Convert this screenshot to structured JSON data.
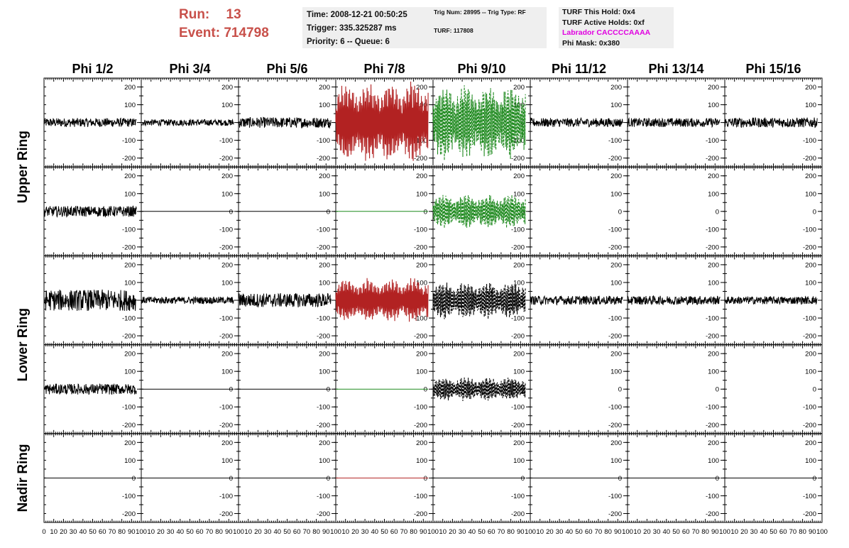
{
  "run_info": {
    "run_label": "Run:",
    "run_value": "13",
    "event_label": "Event:",
    "event_value": "714798"
  },
  "time_box": {
    "time": "Time: 2008-12-21 00:50:25",
    "trigger": "Trigger: 335.325287 ms",
    "priority": "Priority: 6 -- Queue: 6"
  },
  "trig_box": {
    "trig": "Trig Num: 28995 -- Trig Type: RF",
    "turf": "TURF: 117808"
  },
  "turf_box": {
    "this_hold": "TURF This Hold: 0x4",
    "active_holds": "TURF Active Holds: 0xf",
    "labrador": "Labrador CACCCCAAAA",
    "phi_mask": "Phi Mask: 0x380"
  },
  "colors": {
    "run_text": "#c8504a",
    "info_bg": "#efefef",
    "labrador_text": "#e000e0",
    "trace_black": "#000000",
    "trace_red": "#b22222",
    "trace_green": "#1f8a1f"
  },
  "phi_titles": [
    "Phi 1/2",
    "Phi 3/4",
    "Phi 5/6",
    "Phi 7/8",
    "Phi 9/10",
    "Phi 11/12",
    "Phi 13/14",
    "Phi 15/16"
  ],
  "ring_titles": [
    "Upper Ring",
    "Lower Ring",
    "Nadir Ring"
  ],
  "chart_data": {
    "type": "line",
    "x_ticks": [
      "0",
      "10",
      "20",
      "30",
      "40",
      "50",
      "60",
      "70",
      "80",
      "90",
      "100"
    ],
    "y_ticks": [
      "200",
      "100",
      "0",
      "-100",
      "-200"
    ],
    "xlim": [
      0,
      100
    ],
    "ylim": [
      -250,
      250
    ],
    "rows": [
      {
        "ring": "Upper Ring",
        "panels": [
          {
            "amp": 25,
            "color": "black",
            "style": "solid",
            "kind": "noise"
          },
          {
            "amp": 18,
            "color": "black",
            "style": "solid",
            "kind": "noise"
          },
          {
            "amp": 30,
            "color": "black",
            "style": "solid",
            "kind": "noise"
          },
          {
            "amp": 240,
            "color": "red",
            "style": "solid",
            "kind": "beat"
          },
          {
            "amp": 220,
            "color": "green",
            "style": "dashed",
            "kind": "beat"
          },
          {
            "amp": 25,
            "color": "black",
            "style": "solid",
            "kind": "noise"
          },
          {
            "amp": 25,
            "color": "black",
            "style": "solid",
            "kind": "noise"
          },
          {
            "amp": 28,
            "color": "black",
            "style": "solid",
            "kind": "noise"
          }
        ]
      },
      {
        "ring": "Upper Ring",
        "panels": [
          {
            "amp": 30,
            "color": "black",
            "style": "solid",
            "kind": "noise"
          },
          {
            "amp": 0,
            "color": "black",
            "style": "solid",
            "kind": "flat"
          },
          {
            "amp": 0,
            "color": "black",
            "style": "solid",
            "kind": "flat"
          },
          {
            "amp": 0,
            "color": "green",
            "style": "solid",
            "kind": "flat"
          },
          {
            "amp": 100,
            "color": "green",
            "style": "dashed",
            "kind": "beat"
          },
          {
            "amp": 0,
            "color": "none",
            "style": "solid",
            "kind": "empty"
          },
          {
            "amp": 0,
            "color": "none",
            "style": "solid",
            "kind": "empty"
          },
          {
            "amp": 0,
            "color": "none",
            "style": "solid",
            "kind": "empty"
          }
        ]
      },
      {
        "ring": "Lower Ring",
        "panels": [
          {
            "amp": 60,
            "color": "black",
            "style": "solid",
            "kind": "noise"
          },
          {
            "amp": 20,
            "color": "black",
            "style": "solid",
            "kind": "noise"
          },
          {
            "amp": 40,
            "color": "black",
            "style": "solid",
            "kind": "noise"
          },
          {
            "amp": 130,
            "color": "red",
            "style": "solid",
            "kind": "beat"
          },
          {
            "amp": 110,
            "color": "black",
            "style": "dashed",
            "kind": "beat"
          },
          {
            "amp": 25,
            "color": "black",
            "style": "solid",
            "kind": "noise"
          },
          {
            "amp": 25,
            "color": "black",
            "style": "solid",
            "kind": "noise"
          },
          {
            "amp": 22,
            "color": "black",
            "style": "solid",
            "kind": "noise"
          }
        ]
      },
      {
        "ring": "Lower Ring",
        "panels": [
          {
            "amp": 30,
            "color": "black",
            "style": "solid",
            "kind": "noise"
          },
          {
            "amp": 0,
            "color": "black",
            "style": "solid",
            "kind": "flat"
          },
          {
            "amp": 0,
            "color": "black",
            "style": "solid",
            "kind": "flat"
          },
          {
            "amp": 0,
            "color": "green",
            "style": "solid",
            "kind": "flat"
          },
          {
            "amp": 70,
            "color": "black",
            "style": "dashed",
            "kind": "beat"
          },
          {
            "amp": 0,
            "color": "none",
            "style": "solid",
            "kind": "empty"
          },
          {
            "amp": 0,
            "color": "none",
            "style": "solid",
            "kind": "empty"
          },
          {
            "amp": 0,
            "color": "none",
            "style": "solid",
            "kind": "empty"
          }
        ]
      },
      {
        "ring": "Nadir Ring",
        "panels": [
          {
            "amp": 0,
            "color": "black",
            "style": "solid",
            "kind": "flat"
          },
          {
            "amp": 0,
            "color": "black",
            "style": "solid",
            "kind": "flat"
          },
          {
            "amp": 0,
            "color": "black",
            "style": "solid",
            "kind": "flat"
          },
          {
            "amp": 0,
            "color": "red",
            "style": "solid",
            "kind": "flat"
          },
          {
            "amp": 0,
            "color": "black",
            "style": "solid",
            "kind": "flat"
          },
          {
            "amp": 0,
            "color": "black",
            "style": "solid",
            "kind": "flat"
          },
          {
            "amp": 0,
            "color": "black",
            "style": "solid",
            "kind": "flat"
          },
          {
            "amp": 0,
            "color": "black",
            "style": "solid",
            "kind": "flat"
          }
        ]
      }
    ]
  }
}
